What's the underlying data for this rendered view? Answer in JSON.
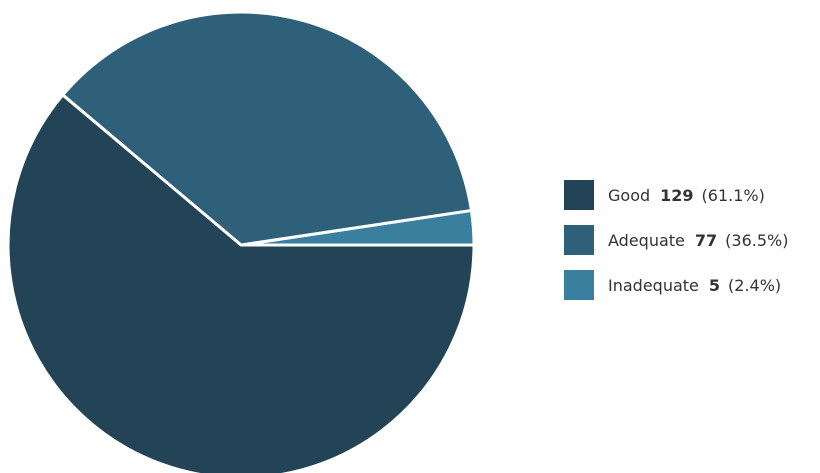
{
  "chart_data": {
    "type": "pie",
    "categories": [
      "Good",
      "Adequate",
      "Inadequate"
    ],
    "values": [
      129,
      77,
      5
    ],
    "percentages": [
      "(61.1%)",
      "(36.5%)",
      "(2.4%)"
    ],
    "colors": [
      "#234457",
      "#2f6079",
      "#3a7f9e"
    ],
    "legend_position": "right"
  },
  "legend": {
    "items": [
      {
        "label": "Good",
        "value": "129",
        "percent": "(61.1%)"
      },
      {
        "label": "Adequate",
        "value": "77",
        "percent": "(36.5%)"
      },
      {
        "label": "Inadequate",
        "value": "5",
        "percent": "(2.4%)"
      }
    ]
  }
}
